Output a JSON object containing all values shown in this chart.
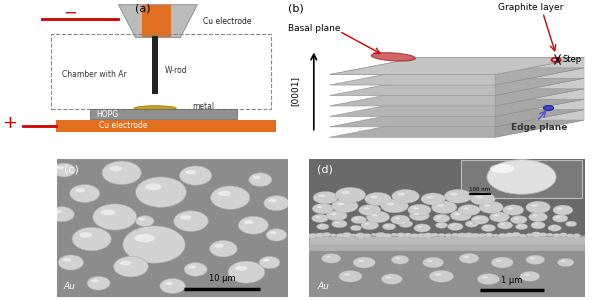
{
  "fig_width": 6.0,
  "fig_height": 3.0,
  "dpi": 100,
  "bg_color": "#ffffff",
  "orange_color": "#E07020",
  "gray_light": "#C8C8C8",
  "gray_mid": "#AAAAAA",
  "gray_dark": "#808080",
  "red_color": "#CC0000",
  "blue_color": "#5555CC",
  "gold_color": "#C8A020",
  "sem_bg_c": "#8C8C8C",
  "sem_bg_d_top": "#707070",
  "sem_bg_d_bot": "#909090",
  "droplet_color": "#D8D8D8",
  "droplet_edge": "#AAAAAA",
  "panel_a_label": "(a)",
  "panel_b_label": "(b)",
  "panel_c_label": "(c)",
  "panel_d_label": "(d)",
  "layers_color_top": "#C0C0C0",
  "layers_color_bot": "#AAAAAA",
  "n_layers": 7
}
